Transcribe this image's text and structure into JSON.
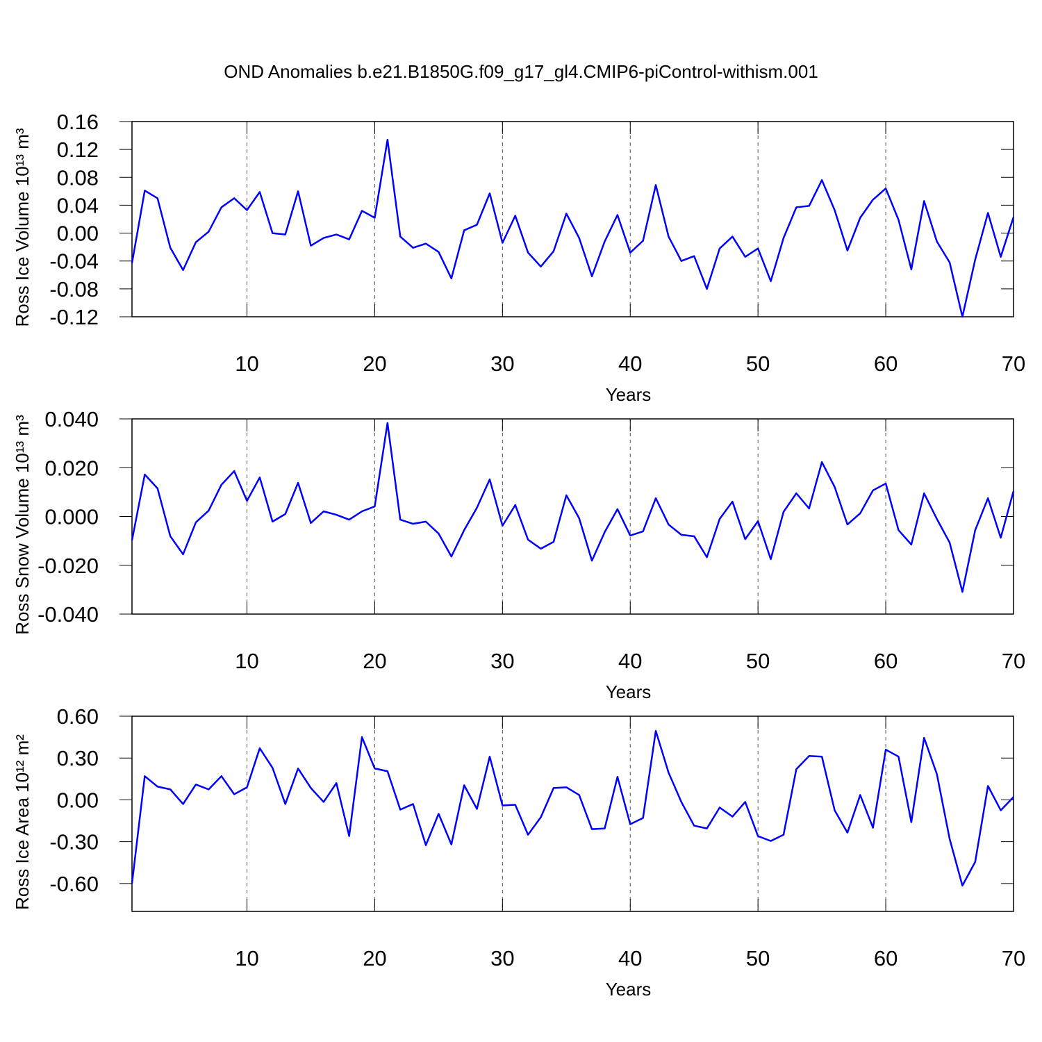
{
  "title": "OND Anomalies b.e21.B1850G.f09_g17_gl4.CMIP6-piControl-withism.001",
  "chart_data": [
    {
      "type": "line",
      "xlabel": "Years",
      "ylabel": "Ross Ice Volume 10¹³ m³",
      "color": "#0000ff",
      "x": [
        1,
        2,
        3,
        4,
        5,
        6,
        7,
        8,
        9,
        10,
        11,
        12,
        13,
        14,
        15,
        16,
        17,
        18,
        19,
        20,
        21,
        22,
        23,
        24,
        25,
        26,
        27,
        28,
        29,
        30,
        31,
        32,
        33,
        34,
        35,
        36,
        37,
        38,
        39,
        40,
        41,
        42,
        43,
        44,
        45,
        46,
        47,
        48,
        49,
        50,
        51,
        52,
        53,
        54,
        55,
        56,
        57,
        58,
        59,
        60,
        61,
        62,
        63,
        64,
        65,
        66,
        67,
        68,
        69,
        70
      ],
      "values": [
        -0.043,
        0.061,
        0.05,
        -0.021,
        -0.053,
        -0.013,
        0.002,
        0.037,
        0.05,
        0.033,
        0.059,
        0.0,
        -0.002,
        0.06,
        -0.018,
        -0.007,
        -0.002,
        -0.009,
        0.032,
        0.022,
        0.134,
        -0.005,
        -0.021,
        -0.015,
        -0.027,
        -0.065,
        0.004,
        0.012,
        0.057,
        -0.014,
        0.025,
        -0.028,
        -0.048,
        -0.026,
        0.028,
        -0.007,
        -0.062,
        -0.012,
        0.026,
        -0.028,
        -0.011,
        0.069,
        -0.005,
        -0.04,
        -0.033,
        -0.08,
        -0.022,
        -0.005,
        -0.034,
        -0.022,
        -0.069,
        -0.007,
        0.037,
        0.039,
        0.076,
        0.033,
        -0.025,
        0.022,
        0.048,
        0.064,
        0.019,
        -0.052,
        0.046,
        -0.012,
        -0.042,
        -0.12,
        -0.038,
        0.029,
        -0.034,
        0.023
      ],
      "xlim": [
        1,
        70
      ],
      "xticks": [
        10,
        20,
        30,
        40,
        50,
        60,
        70
      ],
      "ylim": [
        -0.12,
        0.16
      ],
      "yticks": [
        0.16,
        0.12,
        0.08,
        0.04,
        {
          "value": 0,
          "label": "0.00"
        },
        -0.04,
        -0.08,
        -0.12
      ],
      "grid": true
    },
    {
      "type": "line",
      "xlabel": "Years",
      "ylabel": "Ross Snow Volume 10¹³ m³",
      "color": "#0000ff",
      "x": [
        1,
        2,
        3,
        4,
        5,
        6,
        7,
        8,
        9,
        10,
        11,
        12,
        13,
        14,
        15,
        16,
        17,
        18,
        19,
        20,
        21,
        22,
        23,
        24,
        25,
        26,
        27,
        28,
        29,
        30,
        31,
        32,
        33,
        34,
        35,
        36,
        37,
        38,
        39,
        40,
        41,
        42,
        43,
        44,
        45,
        46,
        47,
        48,
        49,
        50,
        51,
        52,
        53,
        54,
        55,
        56,
        57,
        58,
        59,
        60,
        61,
        62,
        63,
        64,
        65,
        66,
        67,
        68,
        69,
        70
      ],
      "values": [
        -0.0098,
        0.0172,
        0.0115,
        -0.0081,
        -0.0155,
        -0.0024,
        0.0024,
        0.013,
        0.0186,
        0.0064,
        0.016,
        -0.0021,
        0.001,
        0.0138,
        -0.0027,
        0.0021,
        0.0007,
        -0.0013,
        0.0021,
        0.0041,
        0.0383,
        -0.0013,
        -0.003,
        -0.0021,
        -0.007,
        -0.0164,
        -0.0056,
        0.0036,
        0.0152,
        -0.0038,
        0.0047,
        -0.0095,
        -0.0132,
        -0.0104,
        0.0087,
        -0.0007,
        -0.0181,
        -0.0064,
        0.003,
        -0.0078,
        -0.0061,
        0.0075,
        -0.0033,
        -0.0075,
        -0.0081,
        -0.0167,
        -0.001,
        0.0061,
        -0.0093,
        -0.0019,
        -0.0175,
        0.0019,
        0.0095,
        0.0033,
        0.0223,
        0.0121,
        -0.0033,
        0.0013,
        0.0107,
        0.0135,
        -0.0056,
        -0.0115,
        0.0095,
        -0.001,
        -0.0107,
        -0.0309,
        -0.0056,
        0.0075,
        -0.0087,
        0.0104
      ],
      "xlim": [
        1,
        70
      ],
      "xticks": [
        10,
        20,
        30,
        40,
        50,
        60,
        70
      ],
      "ylim": [
        -0.04,
        0.04
      ],
      "yticks": [
        {
          "value": 0.04,
          "label": "0.040"
        },
        {
          "value": 0.02,
          "label": "0.020"
        },
        {
          "value": 0,
          "label": "0.000"
        },
        {
          "value": -0.02,
          "label": "-0.020"
        },
        {
          "value": -0.04,
          "label": "-0.040"
        }
      ],
      "grid": true
    },
    {
      "type": "line",
      "xlabel": "Years",
      "ylabel": "Ross Ice Area 10¹² m²",
      "color": "#0000ff",
      "x": [
        1,
        2,
        3,
        4,
        5,
        6,
        7,
        8,
        9,
        10,
        11,
        12,
        13,
        14,
        15,
        16,
        17,
        18,
        19,
        20,
        21,
        22,
        23,
        24,
        25,
        26,
        27,
        28,
        29,
        30,
        31,
        32,
        33,
        34,
        35,
        36,
        37,
        38,
        39,
        40,
        41,
        42,
        43,
        44,
        45,
        46,
        47,
        48,
        49,
        50,
        51,
        52,
        53,
        54,
        55,
        56,
        57,
        58,
        59,
        60,
        61,
        62,
        63,
        64,
        65,
        66,
        67,
        68,
        69,
        70
      ],
      "values": [
        -0.6,
        0.17,
        0.095,
        0.075,
        -0.03,
        0.11,
        0.075,
        0.17,
        0.04,
        0.09,
        0.37,
        0.23,
        -0.03,
        0.225,
        0.085,
        -0.015,
        0.12,
        -0.26,
        0.45,
        0.225,
        0.205,
        -0.07,
        -0.03,
        -0.325,
        -0.1,
        -0.32,
        0.105,
        -0.065,
        0.31,
        -0.04,
        -0.035,
        -0.25,
        -0.125,
        0.085,
        0.09,
        0.035,
        -0.21,
        -0.205,
        0.165,
        -0.175,
        -0.13,
        0.495,
        0.195,
        -0.015,
        -0.185,
        -0.205,
        -0.055,
        -0.12,
        -0.015,
        -0.26,
        -0.295,
        -0.25,
        0.22,
        0.315,
        0.31,
        -0.075,
        -0.235,
        0.035,
        -0.2,
        0.36,
        0.31,
        -0.16,
        0.445,
        0.185,
        -0.28,
        -0.615,
        -0.445,
        0.1,
        -0.075,
        0.02
      ],
      "xlim": [
        1,
        70
      ],
      "xticks": [
        10,
        20,
        30,
        40,
        50,
        60,
        70
      ],
      "ylim": [
        -0.8,
        0.6
      ],
      "yticks": [
        {
          "value": 0.6,
          "label": "0.60"
        },
        {
          "value": 0.3,
          "label": "0.30"
        },
        {
          "value": 0,
          "label": "0.00"
        },
        {
          "value": -0.3,
          "label": "-0.30"
        },
        {
          "value": -0.6,
          "label": "-0.60"
        }
      ],
      "grid": true
    }
  ]
}
